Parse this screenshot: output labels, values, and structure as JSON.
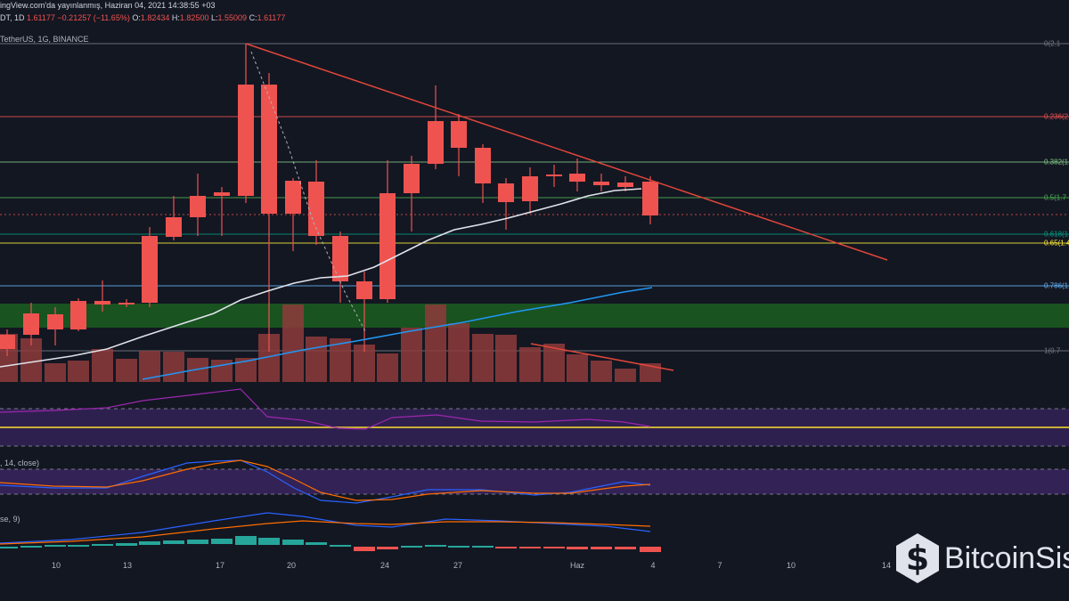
{
  "header": {
    "line1": "ingView.com'da yayınlanmış, Haziran 04, 2021 14:38:55 +03",
    "symbol_tf": "DT, 1D",
    "last": "1.61177",
    "change": "−0.21257 (−11.65%)",
    "o_label": "O:",
    "o": "1.82434",
    "h_label": "H:",
    "h": "1.82500",
    "l_label": "L:",
    "l": "1.55009",
    "c_label": "C:",
    "c": "1.61177",
    "line3": "TetherUS, 1G, BINANCE"
  },
  "fib_levels": [
    {
      "label": "0(2.1",
      "color": "#787b86"
    },
    {
      "label": "0.236(2.2",
      "color": "#ef5350"
    },
    {
      "label": "0.382(1.9",
      "color": "#81c784"
    },
    {
      "label": "0.5(1.7",
      "color": "#4caf50"
    },
    {
      "label": "0.618(1.4",
      "color": "#089981"
    },
    {
      "label": "0.65(1.4",
      "color": "#ffeb3b"
    },
    {
      "label": "0.786(1.1",
      "color": "#64b5f6"
    },
    {
      "label": "1(0.7",
      "color": "#787b86"
    }
  ],
  "x_axis": [
    "10",
    "13",
    "17",
    "20",
    "24",
    "27",
    "Haz",
    "4",
    "7",
    "10",
    "14"
  ],
  "indicators": {
    "stoch_title": ", 14, close)",
    "macd_title": "se, 9)"
  },
  "watermark": {
    "text": "BitcoinSis",
    "icon": "bitcoin-logo-icon"
  },
  "colors": {
    "up": "#26a69a",
    "down": "#ef5350",
    "background": "#131722",
    "trendline": "#e0463a",
    "support_zone": "#1b5e20"
  }
}
